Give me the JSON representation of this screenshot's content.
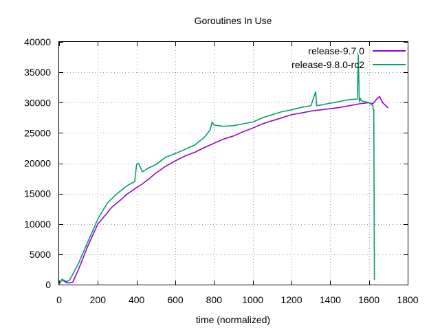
{
  "chart_data": {
    "type": "line",
    "title": "Goroutines In Use",
    "xlabel": "time (normalized)",
    "ylabel": "",
    "xlim": [
      0,
      1800
    ],
    "ylim": [
      0,
      40000
    ],
    "x_ticks": [
      0,
      200,
      400,
      600,
      800,
      1000,
      1200,
      1400,
      1600,
      1800
    ],
    "y_ticks": [
      0,
      5000,
      10000,
      15000,
      20000,
      25000,
      30000,
      35000,
      40000
    ],
    "grid": true,
    "legend_position": "top-right",
    "series": [
      {
        "name": "release-9.7.0",
        "color": "#9400d3",
        "x": [
          0,
          15,
          25,
          40,
          55,
          70,
          100,
          150,
          200,
          240,
          270,
          300,
          330,
          350,
          400,
          430,
          470,
          500,
          550,
          600,
          650,
          700,
          750,
          800,
          850,
          900,
          950,
          1000,
          1050,
          1100,
          1150,
          1200,
          1250,
          1300,
          1350,
          1400,
          1450,
          1500,
          1550,
          1600,
          1620,
          1640,
          1655,
          1670,
          1700
        ],
        "y": [
          0,
          800,
          600,
          300,
          300,
          400,
          2500,
          6500,
          10000,
          11500,
          12700,
          13500,
          14300,
          14900,
          16000,
          16600,
          17600,
          18400,
          19500,
          20400,
          21200,
          21800,
          22600,
          23300,
          24000,
          24500,
          25200,
          25800,
          26500,
          27000,
          27500,
          28000,
          28300,
          28600,
          28800,
          29000,
          29200,
          29500,
          29800,
          30000,
          29800,
          30600,
          31000,
          30000,
          29100
        ]
      },
      {
        "name": "release-9.8.0-rc2",
        "color": "#009e73",
        "x": [
          0,
          15,
          25,
          40,
          55,
          100,
          150,
          200,
          250,
          300,
          350,
          390,
          400,
          410,
          430,
          460,
          500,
          550,
          600,
          650,
          700,
          750,
          780,
          790,
          800,
          850,
          900,
          950,
          1000,
          1050,
          1100,
          1150,
          1200,
          1250,
          1300,
          1325,
          1330,
          1350,
          1400,
          1450,
          1500,
          1540,
          1545,
          1550,
          1555,
          1560,
          1600,
          1620,
          1622,
          1625,
          1628
        ],
        "y": [
          0,
          900,
          700,
          500,
          800,
          3500,
          7200,
          10800,
          13500,
          15000,
          16300,
          17000,
          19800,
          20000,
          18600,
          19200,
          19800,
          21000,
          21600,
          22300,
          23000,
          24300,
          25500,
          26800,
          26300,
          26100,
          26200,
          26500,
          26800,
          27500,
          28000,
          28500,
          28800,
          29200,
          29500,
          31800,
          29500,
          29600,
          29900,
          30200,
          30500,
          30600,
          37800,
          30200,
          30700,
          30300,
          30000,
          29500,
          28900,
          28900,
          800
        ]
      }
    ]
  }
}
